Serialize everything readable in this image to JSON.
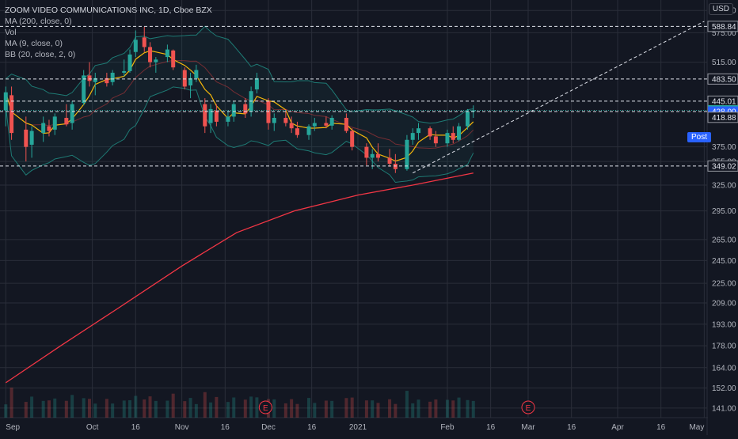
{
  "header": {
    "title": "ZOOM VIDEO COMMUNICATIONS INC, 1D, Cboe BZX",
    "indicators": [
      "MA (200, close, 0)",
      "Vol",
      "MA (9, close, 0)",
      "BB (20, close, 2, 0)"
    ],
    "currency": "USD"
  },
  "badges": {
    "post_label": "Post"
  },
  "colors": {
    "background": "#131722",
    "up": "#26a69a",
    "down": "#ef5350",
    "ma200": "#f23645",
    "ma9": "#f5b70a",
    "bollinger": "#1e7a74",
    "grid": "#2a2e39",
    "level_line": "#e0e3eb",
    "price_highlight": "#26a69a",
    "post_highlight": "#2962ff"
  },
  "chart_data": {
    "type": "candlestick",
    "title": "ZOOM VIDEO COMMUNICATIONS INC, 1D, Cboe BZX",
    "log_scale": true,
    "grid": true,
    "ylim": [
      136,
      650
    ],
    "y_ticks": [
      141.0,
      152.0,
      164.0,
      178.0,
      193.0,
      209.0,
      225.0,
      245.0,
      265.0,
      295.0,
      325.0,
      355.0,
      375.0,
      515.0,
      575.0,
      625.0
    ],
    "x_ticks": [
      "Sep",
      "Oct",
      "16",
      "Nov",
      "16",
      "Dec",
      "16",
      "2021",
      "Feb",
      "16",
      "Mar",
      "16",
      "Apr",
      "16",
      "May"
    ],
    "x_tick_dates": [
      "2020-09-01",
      "2020-10-01",
      "2020-10-16",
      "2020-11-01",
      "2020-11-16",
      "2020-12-01",
      "2020-12-16",
      "2021-01-01",
      "2021-02-01",
      "2021-02-16",
      "2021-03-01",
      "2021-03-16",
      "2021-04-01",
      "2021-04-16",
      "2021-05-01"
    ],
    "horizontal_levels": [
      {
        "value": 588.84,
        "label": "588.84"
      },
      {
        "value": 483.5,
        "label": "483.50"
      },
      {
        "value": 445.01,
        "label": "445.01"
      },
      {
        "value": 428.0,
        "label": "428.00"
      },
      {
        "value": 349.02,
        "label": "349.02"
      }
    ],
    "current_price": {
      "value": 430.03,
      "label": "430.03"
    },
    "post_price": {
      "value": 428.0,
      "label": "428.00"
    },
    "last_label": {
      "value": 418.88,
      "label": "418.88"
    },
    "trendline": [
      {
        "date": "2021-01-20",
        "value": 340
      },
      {
        "date": "2021-05-01",
        "value": 600
      }
    ],
    "event_markers": [
      {
        "date": "2020-11-30",
        "label": "E"
      },
      {
        "date": "2021-03-01",
        "label": "E"
      }
    ],
    "ma200": [
      {
        "date": "2020-09-01",
        "value": 155
      },
      {
        "date": "2020-09-20",
        "value": 178
      },
      {
        "date": "2020-10-10",
        "value": 205
      },
      {
        "date": "2020-11-01",
        "value": 240
      },
      {
        "date": "2020-11-20",
        "value": 272
      },
      {
        "date": "2020-12-10",
        "value": 295
      },
      {
        "date": "2021-01-01",
        "value": 313
      },
      {
        "date": "2021-01-20",
        "value": 325
      },
      {
        "date": "2021-02-10",
        "value": 340
      }
    ],
    "ohlc": [
      {
        "d": "2020-09-01",
        "o": 430,
        "h": 470,
        "l": 405,
        "c": 460
      },
      {
        "d": "2020-09-03",
        "o": 455,
        "h": 470,
        "l": 385,
        "c": 395
      },
      {
        "d": "2020-09-08",
        "o": 400,
        "h": 420,
        "l": 355,
        "c": 375
      },
      {
        "d": "2020-09-10",
        "o": 378,
        "h": 405,
        "l": 360,
        "c": 398
      },
      {
        "d": "2020-09-14",
        "o": 395,
        "h": 420,
        "l": 382,
        "c": 410
      },
      {
        "d": "2020-09-16",
        "o": 405,
        "h": 415,
        "l": 390,
        "c": 398
      },
      {
        "d": "2020-09-18",
        "o": 400,
        "h": 425,
        "l": 392,
        "c": 420
      },
      {
        "d": "2020-09-22",
        "o": 418,
        "h": 440,
        "l": 405,
        "c": 408
      },
      {
        "d": "2020-09-24",
        "o": 410,
        "h": 445,
        "l": 400,
        "c": 440
      },
      {
        "d": "2020-09-28",
        "o": 442,
        "h": 500,
        "l": 438,
        "c": 490
      },
      {
        "d": "2020-09-30",
        "o": 490,
        "h": 515,
        "l": 470,
        "c": 480
      },
      {
        "d": "2020-10-02",
        "o": 478,
        "h": 495,
        "l": 455,
        "c": 485
      },
      {
        "d": "2020-10-06",
        "o": 485,
        "h": 495,
        "l": 470,
        "c": 476
      },
      {
        "d": "2020-10-08",
        "o": 478,
        "h": 500,
        "l": 472,
        "c": 495
      },
      {
        "d": "2020-10-12",
        "o": 495,
        "h": 520,
        "l": 488,
        "c": 498
      },
      {
        "d": "2020-10-14",
        "o": 498,
        "h": 540,
        "l": 495,
        "c": 530
      },
      {
        "d": "2020-10-16",
        "o": 535,
        "h": 580,
        "l": 525,
        "c": 560
      },
      {
        "d": "2020-10-19",
        "o": 565,
        "h": 588,
        "l": 535,
        "c": 545
      },
      {
        "d": "2020-10-21",
        "o": 545,
        "h": 555,
        "l": 505,
        "c": 515
      },
      {
        "d": "2020-10-23",
        "o": 515,
        "h": 525,
        "l": 495,
        "c": 520
      },
      {
        "d": "2020-10-27",
        "o": 525,
        "h": 550,
        "l": 515,
        "c": 540
      },
      {
        "d": "2020-10-29",
        "o": 538,
        "h": 540,
        "l": 500,
        "c": 505
      },
      {
        "d": "2020-11-02",
        "o": 500,
        "h": 505,
        "l": 465,
        "c": 470
      },
      {
        "d": "2020-11-04",
        "o": 472,
        "h": 495,
        "l": 450,
        "c": 485
      },
      {
        "d": "2020-11-06",
        "o": 485,
        "h": 510,
        "l": 478,
        "c": 500
      },
      {
        "d": "2020-11-09",
        "o": 440,
        "h": 450,
        "l": 395,
        "c": 405
      },
      {
        "d": "2020-11-11",
        "o": 410,
        "h": 440,
        "l": 395,
        "c": 432
      },
      {
        "d": "2020-11-13",
        "o": 430,
        "h": 440,
        "l": 405,
        "c": 412
      },
      {
        "d": "2020-11-17",
        "o": 412,
        "h": 430,
        "l": 405,
        "c": 420
      },
      {
        "d": "2020-11-19",
        "o": 420,
        "h": 445,
        "l": 412,
        "c": 440
      },
      {
        "d": "2020-11-23",
        "o": 440,
        "h": 450,
        "l": 418,
        "c": 425
      },
      {
        "d": "2020-11-25",
        "o": 428,
        "h": 470,
        "l": 420,
        "c": 462
      },
      {
        "d": "2020-11-27",
        "o": 465,
        "h": 495,
        "l": 458,
        "c": 485
      },
      {
        "d": "2020-12-01",
        "o": 445,
        "h": 450,
        "l": 400,
        "c": 410
      },
      {
        "d": "2020-12-03",
        "o": 410,
        "h": 425,
        "l": 398,
        "c": 418
      },
      {
        "d": "2020-12-07",
        "o": 418,
        "h": 432,
        "l": 405,
        "c": 410
      },
      {
        "d": "2020-12-09",
        "o": 410,
        "h": 420,
        "l": 395,
        "c": 402
      },
      {
        "d": "2020-12-11",
        "o": 402,
        "h": 412,
        "l": 388,
        "c": 392
      },
      {
        "d": "2020-12-15",
        "o": 392,
        "h": 408,
        "l": 385,
        "c": 405
      },
      {
        "d": "2020-12-17",
        "o": 405,
        "h": 418,
        "l": 398,
        "c": 410
      },
      {
        "d": "2020-12-21",
        "o": 410,
        "h": 420,
        "l": 402,
        "c": 406
      },
      {
        "d": "2020-12-23",
        "o": 406,
        "h": 422,
        "l": 400,
        "c": 418
      },
      {
        "d": "2020-12-28",
        "o": 418,
        "h": 425,
        "l": 395,
        "c": 398
      },
      {
        "d": "2020-12-30",
        "o": 398,
        "h": 402,
        "l": 370,
        "c": 375
      },
      {
        "d": "2021-01-04",
        "o": 375,
        "h": 380,
        "l": 350,
        "c": 360
      },
      {
        "d": "2021-01-06",
        "o": 360,
        "h": 372,
        "l": 345,
        "c": 365
      },
      {
        "d": "2021-01-08",
        "o": 365,
        "h": 380,
        "l": 355,
        "c": 360
      },
      {
        "d": "2021-01-12",
        "o": 360,
        "h": 372,
        "l": 348,
        "c": 352
      },
      {
        "d": "2021-01-14",
        "o": 352,
        "h": 365,
        "l": 340,
        "c": 345
      },
      {
        "d": "2021-01-18",
        "o": 345,
        "h": 392,
        "l": 343,
        "c": 385
      },
      {
        "d": "2021-01-20",
        "o": 385,
        "h": 402,
        "l": 378,
        "c": 395
      },
      {
        "d": "2021-01-22",
        "o": 395,
        "h": 410,
        "l": 385,
        "c": 402
      },
      {
        "d": "2021-01-26",
        "o": 402,
        "h": 405,
        "l": 385,
        "c": 390
      },
      {
        "d": "2021-01-28",
        "o": 390,
        "h": 398,
        "l": 375,
        "c": 380
      },
      {
        "d": "2021-02-01",
        "o": 380,
        "h": 400,
        "l": 375,
        "c": 395
      },
      {
        "d": "2021-02-03",
        "o": 395,
        "h": 405,
        "l": 380,
        "c": 385
      },
      {
        "d": "2021-02-05",
        "o": 385,
        "h": 410,
        "l": 383,
        "c": 405
      },
      {
        "d": "2021-02-08",
        "o": 405,
        "h": 432,
        "l": 400,
        "c": 428
      },
      {
        "d": "2021-02-10",
        "o": 428,
        "h": 438,
        "l": 418,
        "c": 430
      }
    ]
  }
}
